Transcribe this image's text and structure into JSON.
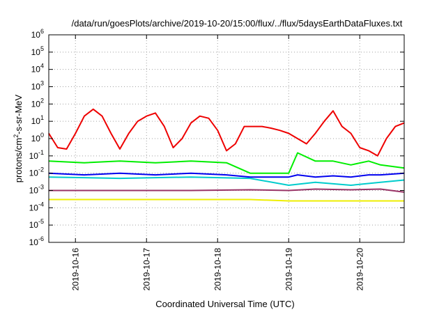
{
  "chart_data": {
    "type": "line",
    "title": "/data/run/goesPlots/archive/2019-10-20/15:00/flux/../flux/5daysEarthDataFluxes.txt",
    "xlabel": "Coordinated Universal Time (UTC)",
    "ylabel": {
      "base": "protons/cm",
      "sup": "2",
      "rest": "-s-sr-MeV"
    },
    "y_scale": "log",
    "ylim_exponent": [
      -6,
      6
    ],
    "y_ticks": [
      {
        "base": "10",
        "exp": "-6",
        "value": 1e-06
      },
      {
        "base": "10",
        "exp": "-5",
        "value": 1e-05
      },
      {
        "base": "10",
        "exp": "-4",
        "value": 0.0001
      },
      {
        "base": "10",
        "exp": "-3",
        "value": 0.001
      },
      {
        "base": "10",
        "exp": "-2",
        "value": 0.01
      },
      {
        "base": "10",
        "exp": "-1",
        "value": 0.1
      },
      {
        "base": "10",
        "exp": "0",
        "value": 1
      },
      {
        "base": "10",
        "exp": "1",
        "value": 10
      },
      {
        "base": "10",
        "exp": "2",
        "value": 100
      },
      {
        "base": "10",
        "exp": "3",
        "value": 1000
      },
      {
        "base": "10",
        "exp": "4",
        "value": 10000
      },
      {
        "base": "10",
        "exp": "5",
        "value": 100000
      },
      {
        "base": "10",
        "exp": "6",
        "value": 1000000
      }
    ],
    "x_range": [
      "2019-10-15T15:00",
      "2019-10-20T15:00"
    ],
    "x_ticks": [
      "2019-10-16",
      "2019-10-17",
      "2019-10-18",
      "2019-10-19",
      "2019-10-20"
    ],
    "grid": true,
    "series": [
      {
        "color": "#ee0000",
        "x": [
          "2019-10-15T15:00",
          "2019-10-15T18:00",
          "2019-10-15T21:00",
          "2019-10-16T00:00",
          "2019-10-16T03:00",
          "2019-10-16T06:00",
          "2019-10-16T09:00",
          "2019-10-16T12:00",
          "2019-10-16T15:00",
          "2019-10-16T18:00",
          "2019-10-16T21:00",
          "2019-10-17T00:00",
          "2019-10-17T03:00",
          "2019-10-17T06:00",
          "2019-10-17T09:00",
          "2019-10-17T12:00",
          "2019-10-17T15:00",
          "2019-10-17T18:00",
          "2019-10-17T21:00",
          "2019-10-18T00:00",
          "2019-10-18T03:00",
          "2019-10-18T06:00",
          "2019-10-18T09:00",
          "2019-10-18T12:00",
          "2019-10-18T15:00",
          "2019-10-18T18:00",
          "2019-10-18T21:00",
          "2019-10-19T00:00",
          "2019-10-19T03:00",
          "2019-10-19T06:00",
          "2019-10-19T09:00",
          "2019-10-19T12:00",
          "2019-10-19T15:00",
          "2019-10-19T18:00",
          "2019-10-19T21:00",
          "2019-10-20T00:00",
          "2019-10-20T03:00",
          "2019-10-20T06:00",
          "2019-10-20T09:00",
          "2019-10-20T12:00",
          "2019-10-20T15:00"
        ],
        "y": [
          2,
          0.3,
          0.25,
          2,
          20,
          50,
          20,
          2,
          0.25,
          2,
          10,
          20,
          30,
          5,
          0.3,
          1,
          8,
          20,
          15,
          3,
          0.2,
          0.5,
          5,
          5,
          5,
          4,
          3,
          2,
          1,
          0.5,
          2,
          10,
          40,
          5,
          2,
          0.3,
          0.2,
          0.1,
          1,
          5,
          8
        ]
      },
      {
        "color": "#00ee00",
        "x": [
          "2019-10-15T15:00",
          "2019-10-16T03:00",
          "2019-10-16T15:00",
          "2019-10-17T03:00",
          "2019-10-17T15:00",
          "2019-10-18T03:00",
          "2019-10-18T11:00",
          "2019-10-19T00:00",
          "2019-10-19T03:00",
          "2019-10-19T09:00",
          "2019-10-19T15:00",
          "2019-10-19T21:00",
          "2019-10-20T03:00",
          "2019-10-20T07:00",
          "2019-10-20T15:00"
        ],
        "y": [
          0.05,
          0.04,
          0.05,
          0.04,
          0.05,
          0.04,
          0.01,
          0.01,
          0.15,
          0.05,
          0.05,
          0.03,
          0.05,
          0.03,
          0.02
        ]
      },
      {
        "color": "#0000ee",
        "x": [
          "2019-10-15T15:00",
          "2019-10-16T03:00",
          "2019-10-16T15:00",
          "2019-10-17T03:00",
          "2019-10-17T15:00",
          "2019-10-18T03:00",
          "2019-10-18T11:00",
          "2019-10-19T00:00",
          "2019-10-19T03:00",
          "2019-10-19T09:00",
          "2019-10-19T15:00",
          "2019-10-19T21:00",
          "2019-10-20T03:00",
          "2019-10-20T07:00",
          "2019-10-20T15:00"
        ],
        "y": [
          0.01,
          0.008,
          0.01,
          0.008,
          0.01,
          0.008,
          0.006,
          0.006,
          0.008,
          0.006,
          0.007,
          0.006,
          0.008,
          0.008,
          0.01
        ]
      },
      {
        "color": "#00cccc",
        "x": [
          "2019-10-15T15:00",
          "2019-10-16T15:00",
          "2019-10-17T15:00",
          "2019-10-18T11:00",
          "2019-10-19T00:00",
          "2019-10-19T09:00",
          "2019-10-19T21:00",
          "2019-10-20T07:00",
          "2019-10-20T15:00"
        ],
        "y": [
          0.006,
          0.005,
          0.006,
          0.005,
          0.002,
          0.003,
          0.002,
          0.003,
          0.004
        ]
      },
      {
        "color": "#993366",
        "x": [
          "2019-10-15T15:00",
          "2019-10-16T15:00",
          "2019-10-17T15:00",
          "2019-10-18T11:00",
          "2019-10-19T00:00",
          "2019-10-19T09:00",
          "2019-10-19T21:00",
          "2019-10-20T07:00",
          "2019-10-20T15:00"
        ],
        "y": [
          0.001,
          0.001,
          0.001,
          0.0011,
          0.001,
          0.0012,
          0.0011,
          0.0012,
          0.0008
        ]
      },
      {
        "color": "#eeee00",
        "x": [
          "2019-10-15T15:00",
          "2019-10-16T15:00",
          "2019-10-17T15:00",
          "2019-10-18T11:00",
          "2019-10-19T00:00",
          "2019-10-19T09:00",
          "2019-10-19T21:00",
          "2019-10-20T07:00",
          "2019-10-20T15:00"
        ],
        "y": [
          0.0003,
          0.0003,
          0.0003,
          0.0003,
          0.00025,
          0.00025,
          0.00025,
          0.00025,
          0.00025
        ]
      }
    ]
  }
}
